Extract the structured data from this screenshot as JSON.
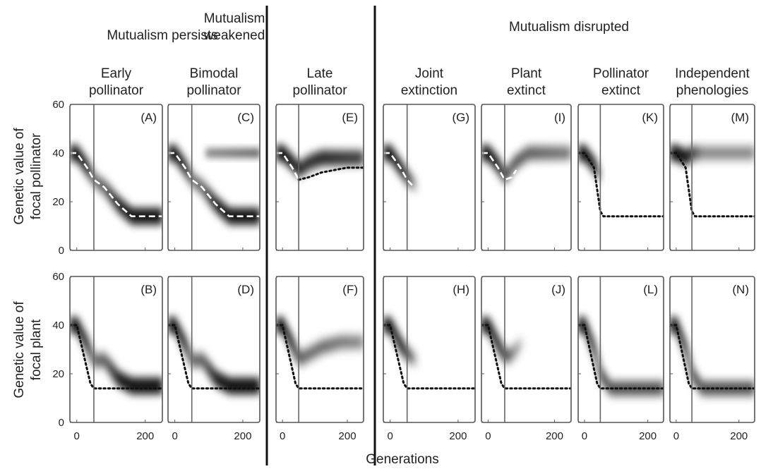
{
  "figure": {
    "x_axis_label": "Generations",
    "y_axis_labels": {
      "pollinator": [
        "Genetic value of",
        "focal pollinator"
      ],
      "plant": [
        "Genetic value of",
        "focal plant"
      ]
    },
    "x_ticks": [
      "0",
      "200"
    ],
    "y_ticks": [
      "0",
      "20",
      "40",
      "60"
    ],
    "groups": [
      {
        "id": "persists",
        "title_lines": [
          "Mutualism persists"
        ],
        "panels": [
          0,
          1
        ]
      },
      {
        "id": "weakened",
        "title_lines": [
          "Mutualism",
          "weakened"
        ],
        "panels": [
          2
        ]
      },
      {
        "id": "disrupted",
        "title_lines": [
          "Mutualism disrupted"
        ],
        "panels": [
          3,
          4,
          5,
          6
        ]
      }
    ],
    "columns": [
      {
        "title_lines": [
          "Early",
          "pollinator"
        ],
        "top_letter": "(A)",
        "bottom_letter": "(B)"
      },
      {
        "title_lines": [
          "Bimodal",
          "pollinator"
        ],
        "top_letter": "(C)",
        "bottom_letter": "(D)"
      },
      {
        "title_lines": [
          "Late",
          "pollinator"
        ],
        "top_letter": "(E)",
        "bottom_letter": "(F)"
      },
      {
        "title_lines": [
          "Joint",
          "extinction"
        ],
        "top_letter": "(G)",
        "bottom_letter": "(H)"
      },
      {
        "title_lines": [
          "Plant",
          "extinct"
        ],
        "top_letter": "(I)",
        "bottom_letter": "(J)"
      },
      {
        "title_lines": [
          "Pollinator",
          "extinct"
        ],
        "top_letter": "(K)",
        "bottom_letter": "(L)"
      },
      {
        "title_lines": [
          "Independent",
          "phenologies"
        ],
        "top_letter": "(M)",
        "bottom_letter": "(N)"
      }
    ]
  },
  "chart_data": {
    "type": "heatmap",
    "x_label": "Generations",
    "xlim": [
      -20,
      250
    ],
    "ylim": [
      0,
      60
    ],
    "shift_generation": 50,
    "panels": [
      {
        "letter": "(A)",
        "band": {
          "gen": [
            -20,
            0,
            30,
            50,
            80,
            120,
            160,
            200,
            250
          ],
          "center": [
            40,
            40,
            34,
            29,
            26,
            19,
            14,
            14,
            14
          ],
          "intensity": [
            1,
            1,
            0.9,
            0.35,
            0.45,
            0.85,
            1,
            1,
            1
          ]
        },
        "mean": {
          "style": "dashed-white",
          "gen": [
            -20,
            0,
            30,
            50,
            80,
            120,
            160,
            200,
            250
          ],
          "y": [
            40,
            40,
            34,
            29,
            26,
            19,
            14,
            14,
            14
          ]
        }
      },
      {
        "letter": "(B)",
        "band": {
          "gen": [
            -20,
            0,
            30,
            50,
            80,
            120,
            160,
            200,
            250
          ],
          "center": [
            40,
            40,
            32,
            25,
            26,
            18,
            15,
            15,
            15
          ],
          "intensity": [
            1,
            1,
            0.9,
            0.35,
            0.4,
            0.85,
            1,
            1,
            1
          ]
        },
        "mean": {
          "style": "dotted-black",
          "gen": [
            -20,
            0,
            40,
            50,
            250
          ],
          "y": [
            40,
            40,
            16,
            14,
            14
          ]
        }
      },
      {
        "letter": "(C)",
        "band": {
          "gen": [
            -20,
            0,
            30,
            50,
            80,
            120,
            160,
            200,
            250
          ],
          "center": [
            40,
            40,
            34,
            29,
            26,
            19,
            14,
            14,
            14
          ],
          "intensity": [
            1,
            1,
            0.9,
            0.35,
            0.4,
            0.85,
            1,
            1,
            1
          ]
        },
        "band2": {
          "gen": [
            90,
            250
          ],
          "center": [
            40,
            40
          ],
          "intensity": [
            0.25,
            0.35
          ]
        },
        "mean": {
          "style": "dashed-white",
          "gen": [
            -20,
            0,
            30,
            50,
            80,
            120,
            160,
            200,
            250
          ],
          "y": [
            40,
            40,
            34,
            29,
            26,
            19,
            14,
            14,
            14
          ]
        }
      },
      {
        "letter": "(D)",
        "band": {
          "gen": [
            -20,
            0,
            30,
            50,
            80,
            120,
            160,
            200,
            250
          ],
          "center": [
            40,
            40,
            32,
            25,
            26,
            18,
            15,
            15,
            15
          ],
          "intensity": [
            1,
            1,
            0.9,
            0.35,
            0.4,
            0.85,
            1,
            1,
            1
          ]
        },
        "mean": {
          "style": "dotted-black",
          "gen": [
            -20,
            0,
            40,
            50,
            250
          ],
          "y": [
            40,
            40,
            16,
            14,
            14
          ]
        }
      },
      {
        "letter": "(E)",
        "band": {
          "gen": [
            -20,
            0,
            30,
            50,
            80,
            120,
            180,
            250
          ],
          "center": [
            40,
            40,
            36,
            33,
            36,
            38,
            38,
            38
          ],
          "intensity": [
            1,
            1,
            0.9,
            0.7,
            0.65,
            0.7,
            0.6,
            0.55
          ]
        },
        "mean": {
          "style": "dashed-white",
          "gen": [
            -20,
            0,
            30,
            50
          ],
          "y": [
            40,
            40,
            34,
            29
          ]
        },
        "mean2": {
          "style": "dotted-black",
          "gen": [
            50,
            80,
            120,
            160,
            200,
            250
          ],
          "y": [
            29,
            30,
            32,
            33,
            34,
            34
          ]
        }
      },
      {
        "letter": "(F)",
        "band": {
          "gen": [
            -20,
            0,
            30,
            50,
            80,
            120,
            180,
            250
          ],
          "center": [
            40,
            40,
            32,
            26,
            28,
            31,
            33,
            33
          ],
          "intensity": [
            1,
            1,
            0.9,
            0.4,
            0.35,
            0.35,
            0.3,
            0.25
          ]
        },
        "mean": {
          "style": "dotted-black",
          "gen": [
            -20,
            0,
            40,
            50,
            250
          ],
          "y": [
            40,
            40,
            16,
            14,
            14
          ]
        }
      },
      {
        "letter": "(G)",
        "band": {
          "gen": [
            -20,
            0,
            30,
            50,
            70,
            80
          ],
          "center": [
            40,
            40,
            34,
            30,
            27,
            26
          ],
          "intensity": [
            1,
            1,
            0.9,
            0.6,
            0.2,
            0
          ]
        },
        "mean": {
          "style": "dashed-white",
          "gen": [
            -20,
            0,
            30,
            50,
            70
          ],
          "y": [
            40,
            40,
            34,
            29,
            26
          ]
        }
      },
      {
        "letter": "(H)",
        "band": {
          "gen": [
            -20,
            0,
            30,
            50,
            70,
            80
          ],
          "center": [
            40,
            40,
            32,
            28,
            26,
            25
          ],
          "intensity": [
            1,
            1,
            0.9,
            0.5,
            0.2,
            0
          ]
        },
        "mean": {
          "style": "dotted-black",
          "gen": [
            -20,
            0,
            40,
            50,
            250
          ],
          "y": [
            40,
            40,
            16,
            14,
            14
          ]
        }
      },
      {
        "letter": "(I)",
        "band": {
          "gen": [
            -20,
            0,
            30,
            50,
            80,
            120,
            180,
            250
          ],
          "center": [
            40,
            40,
            35,
            30,
            36,
            40,
            40,
            40
          ],
          "intensity": [
            1,
            1,
            0.9,
            0.5,
            0.45,
            0.4,
            0.35,
            0.3
          ]
        },
        "mean": {
          "style": "dashed-white",
          "gen": [
            -20,
            0,
            30,
            50,
            70,
            85
          ],
          "y": [
            40,
            40,
            34,
            29,
            30,
            33
          ]
        }
      },
      {
        "letter": "(J)",
        "band": {
          "gen": [
            -20,
            0,
            30,
            50,
            70,
            95,
            105
          ],
          "center": [
            40,
            40,
            32,
            27,
            28,
            32,
            33
          ],
          "intensity": [
            1,
            1,
            0.9,
            0.5,
            0.3,
            0.15,
            0
          ]
        },
        "mean": {
          "style": "dotted-black",
          "gen": [
            -20,
            0,
            40,
            50,
            250
          ],
          "y": [
            40,
            40,
            16,
            14,
            14
          ]
        }
      },
      {
        "letter": "(K)",
        "band": {
          "gen": [
            -20,
            0,
            30,
            45,
            50
          ],
          "center": [
            40,
            40,
            35,
            31,
            30
          ],
          "intensity": [
            1,
            1,
            0.9,
            0.4,
            0
          ]
        },
        "mean": {
          "style": "dotted-black",
          "gen": [
            -20,
            0,
            30,
            50,
            60,
            250
          ],
          "y": [
            40,
            40,
            34,
            16,
            14,
            14
          ]
        }
      },
      {
        "letter": "(L)",
        "band": {
          "gen": [
            -20,
            0,
            30,
            50,
            80,
            250
          ],
          "center": [
            40,
            40,
            30,
            20,
            14,
            14
          ],
          "intensity": [
            1,
            1,
            0.9,
            0.6,
            0.45,
            0.45
          ]
        },
        "mean": {
          "style": "dotted-black",
          "gen": [
            -20,
            0,
            40,
            50,
            250
          ],
          "y": [
            40,
            40,
            16,
            14,
            14
          ]
        }
      },
      {
        "letter": "(M)",
        "band": {
          "gen": [
            -20,
            0,
            30,
            50,
            80,
            250
          ],
          "center": [
            40,
            40,
            38,
            40,
            40,
            40
          ],
          "intensity": [
            1,
            1,
            0.9,
            0.5,
            0.25,
            0.25
          ]
        },
        "mean": {
          "style": "dotted-black",
          "gen": [
            -20,
            0,
            30,
            50,
            60,
            250
          ],
          "y": [
            40,
            40,
            34,
            16,
            14,
            14
          ]
        }
      },
      {
        "letter": "(N)",
        "band": {
          "gen": [
            -20,
            0,
            30,
            50,
            80,
            250
          ],
          "center": [
            40,
            40,
            30,
            20,
            14,
            14
          ],
          "intensity": [
            1,
            1,
            0.9,
            0.6,
            0.45,
            0.45
          ]
        },
        "mean": {
          "style": "dotted-black",
          "gen": [
            -20,
            0,
            40,
            50,
            250
          ],
          "y": [
            40,
            40,
            16,
            14,
            14
          ]
        }
      }
    ]
  }
}
